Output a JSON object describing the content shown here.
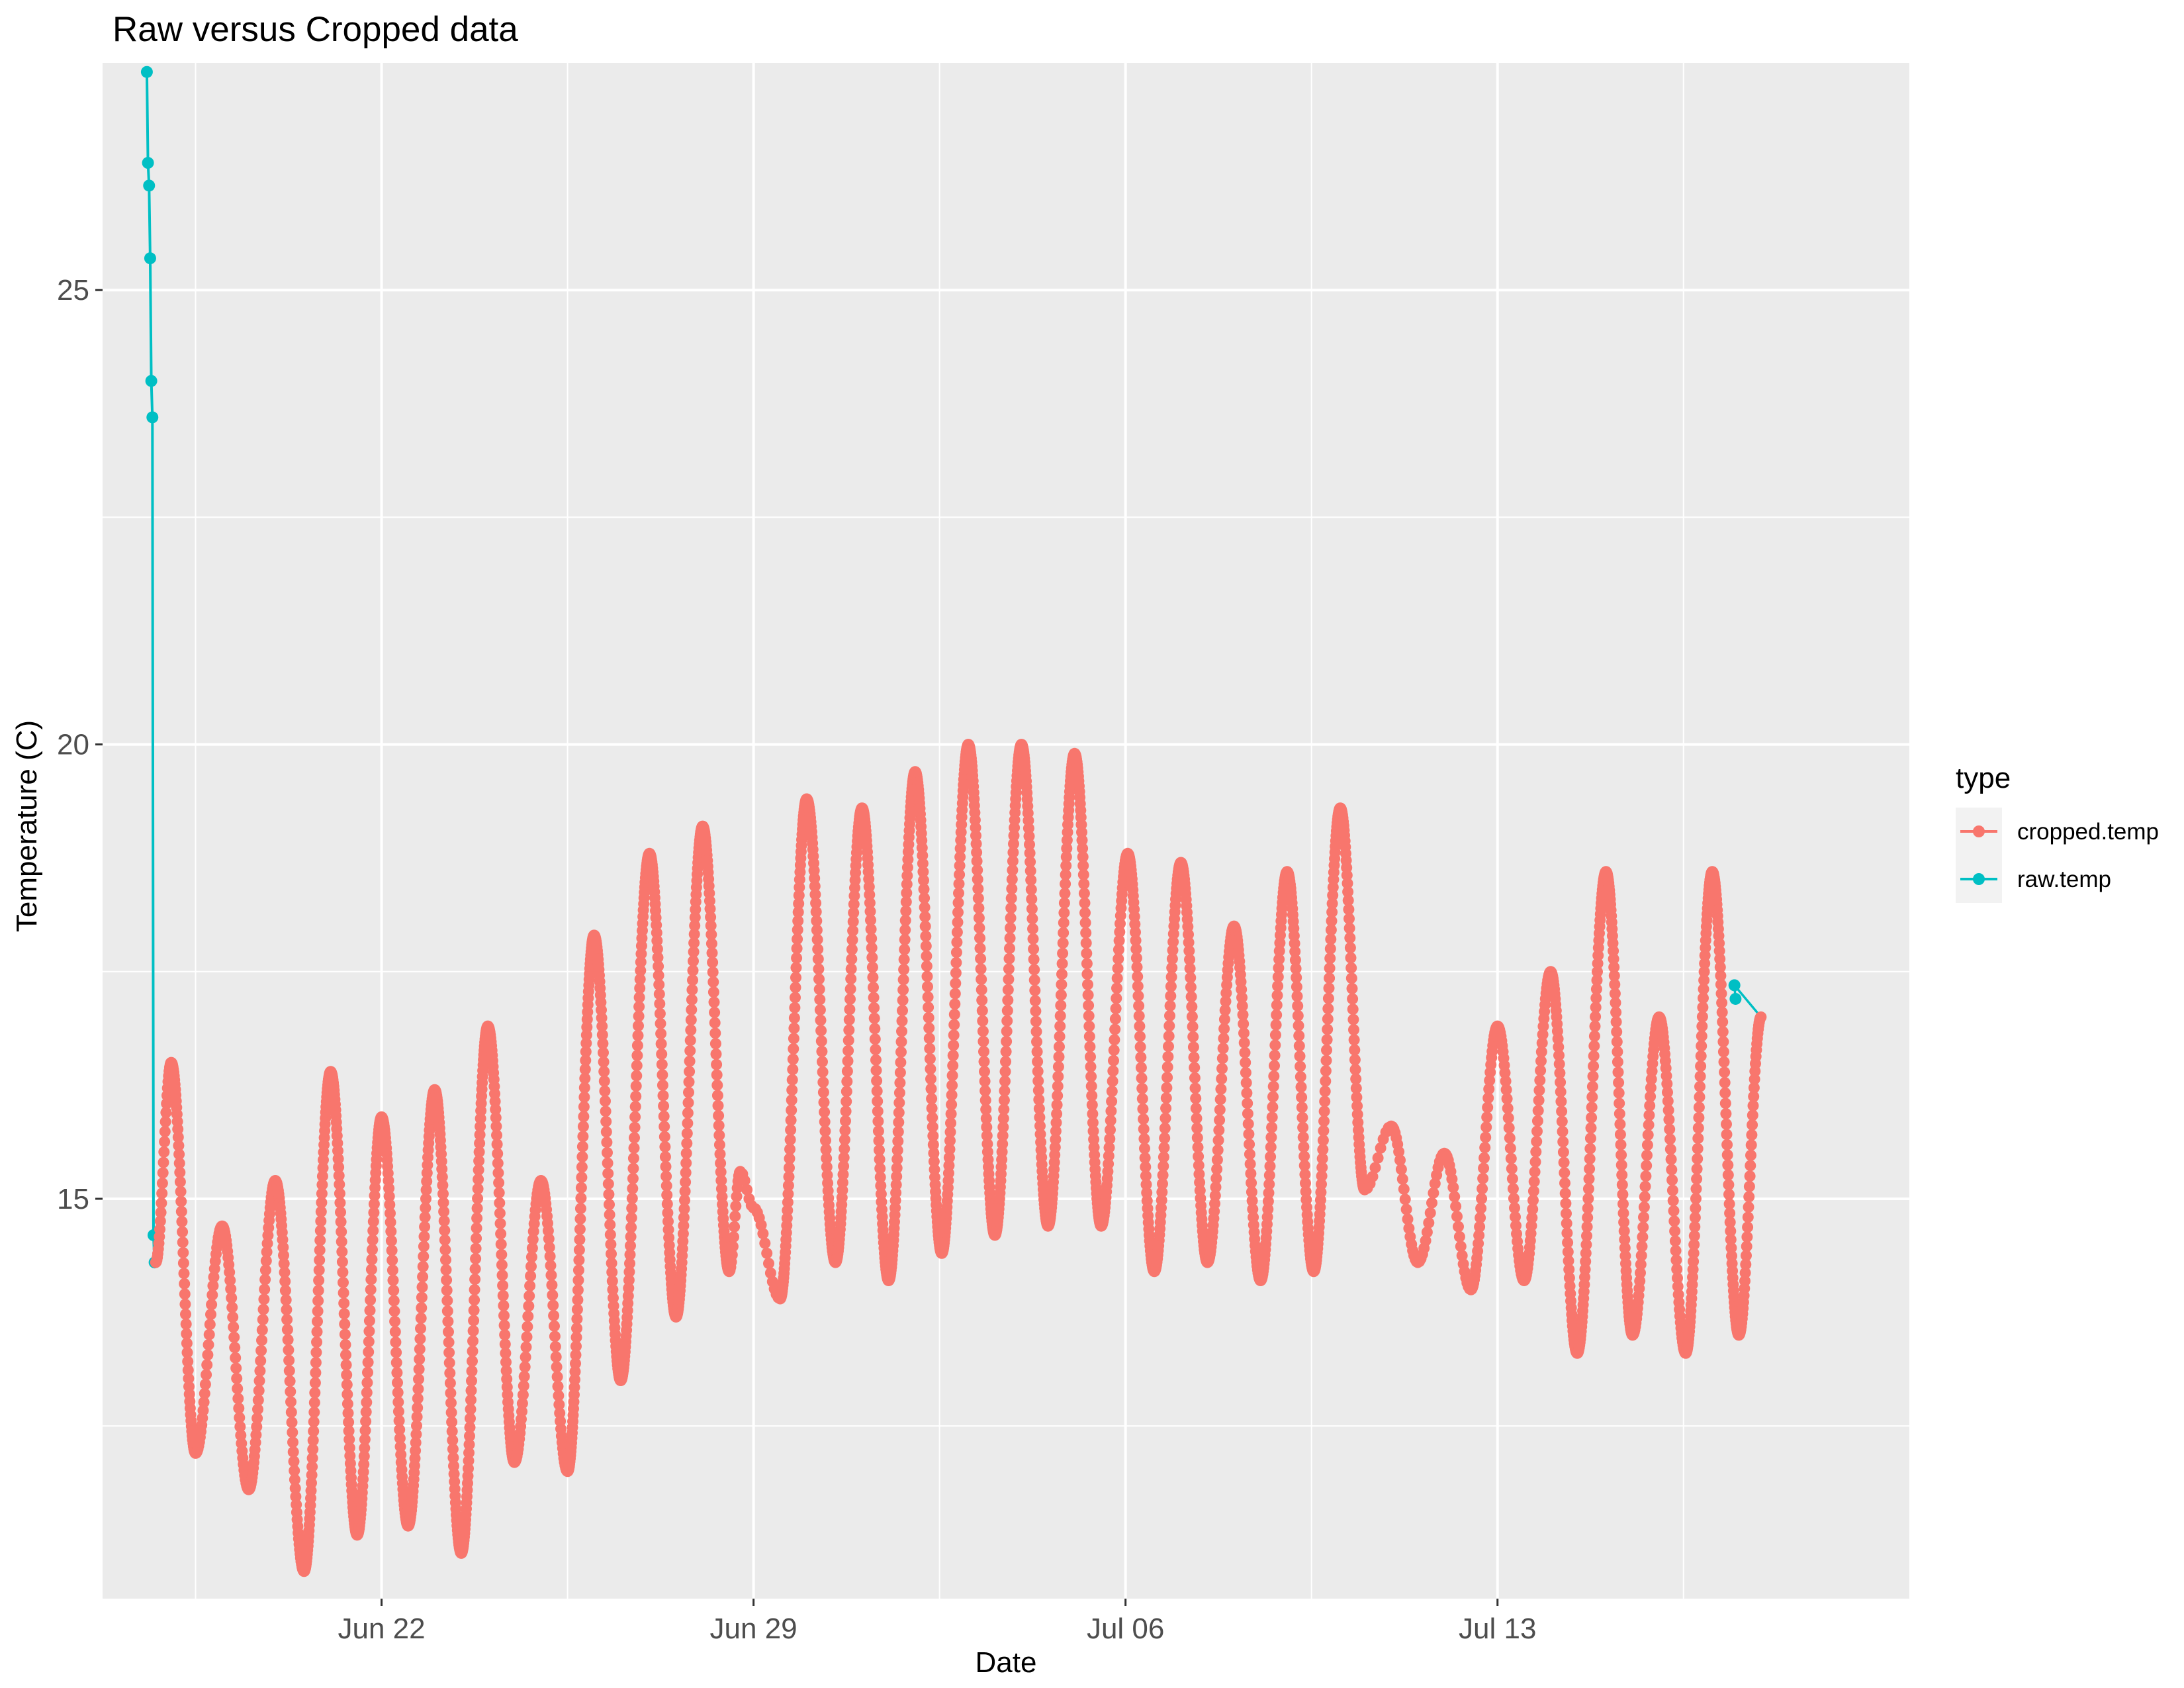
{
  "chart_data": {
    "type": "line",
    "title": "Raw versus Cropped data",
    "xlabel": "Date",
    "ylabel": "Temperature (C)",
    "x_range": [
      "2021-06-16T18:00",
      "2021-07-20T18:00"
    ],
    "x_ticks": [
      {
        "label": "Jun 22",
        "date": "2021-06-22"
      },
      {
        "label": "Jun 29",
        "date": "2021-06-29"
      },
      {
        "label": "Jul 06",
        "date": "2021-07-06"
      },
      {
        "label": "Jul 13",
        "date": "2021-07-13"
      }
    ],
    "x_minor_ticks": [
      "2021-06-18T12:00",
      "2021-06-25T12:00",
      "2021-07-02T12:00",
      "2021-07-09T12:00",
      "2021-07-16T12:00"
    ],
    "ylim": [
      10.6,
      27.5
    ],
    "y_ticks": [
      15,
      20,
      25
    ],
    "y_minor_ticks": [
      12.5,
      17.5,
      22.5
    ],
    "grid": true,
    "legend": {
      "title": "type",
      "position": "right"
    },
    "series": [
      {
        "name": "raw.temp",
        "color": "#00BFC4",
        "points": [
          [
            "2021-06-17T14:00",
            27.4
          ],
          [
            "2021-06-17T14:30",
            26.4
          ],
          [
            "2021-06-17T15:00",
            26.15
          ],
          [
            "2021-06-17T15:30",
            25.35
          ],
          [
            "2021-06-17T16:00",
            24.0
          ],
          [
            "2021-06-17T16:30",
            23.6
          ],
          [
            "2021-06-17T17:00",
            14.6
          ],
          [
            "2021-06-17T17:30",
            14.3
          ],
          [
            "2021-07-17T11:00",
            17.35
          ],
          [
            "2021-07-17T11:30",
            17.2
          ]
        ]
      },
      {
        "name": "cropped.temp",
        "color": "#F8766D",
        "points": [
          [
            "2021-06-17T18:00",
            14.3
          ],
          [
            "2021-06-18T01:00",
            16.5
          ],
          [
            "2021-06-18T12:00",
            12.2
          ],
          [
            "2021-06-19T00:00",
            14.7
          ],
          [
            "2021-06-19T12:00",
            11.8
          ],
          [
            "2021-06-20T00:00",
            15.2
          ],
          [
            "2021-06-20T13:00",
            10.9
          ],
          [
            "2021-06-21T01:00",
            16.4
          ],
          [
            "2021-06-21T13:00",
            11.3
          ],
          [
            "2021-06-22T00:00",
            15.9
          ],
          [
            "2021-06-22T12:00",
            11.4
          ],
          [
            "2021-06-23T00:00",
            16.2
          ],
          [
            "2021-06-23T12:00",
            11.1
          ],
          [
            "2021-06-24T00:00",
            16.9
          ],
          [
            "2021-06-24T12:00",
            12.1
          ],
          [
            "2021-06-25T00:00",
            15.2
          ],
          [
            "2021-06-25T12:00",
            12.0
          ],
          [
            "2021-06-26T00:00",
            17.9
          ],
          [
            "2021-06-26T12:00",
            13.0
          ],
          [
            "2021-06-27T01:00",
            18.8
          ],
          [
            "2021-06-27T13:00",
            13.7
          ],
          [
            "2021-06-28T01:00",
            19.1
          ],
          [
            "2021-06-28T13:00",
            14.2
          ],
          [
            "2021-06-28T18:00",
            15.3
          ],
          [
            "2021-06-29T00:00",
            14.9
          ],
          [
            "2021-06-29T12:00",
            13.9
          ],
          [
            "2021-06-30T00:00",
            19.4
          ],
          [
            "2021-06-30T13:00",
            14.3
          ],
          [
            "2021-07-01T01:00",
            19.3
          ],
          [
            "2021-07-01T13:00",
            14.1
          ],
          [
            "2021-07-02T01:00",
            19.7
          ],
          [
            "2021-07-02T13:00",
            14.4
          ],
          [
            "2021-07-03T01:00",
            20.0
          ],
          [
            "2021-07-03T13:00",
            14.6
          ],
          [
            "2021-07-04T01:00",
            20.0
          ],
          [
            "2021-07-04T13:00",
            14.7
          ],
          [
            "2021-07-05T01:00",
            19.9
          ],
          [
            "2021-07-05T13:00",
            14.7
          ],
          [
            "2021-07-06T01:00",
            18.8
          ],
          [
            "2021-07-06T13:00",
            14.2
          ],
          [
            "2021-07-07T01:00",
            18.7
          ],
          [
            "2021-07-07T13:00",
            14.3
          ],
          [
            "2021-07-08T01:00",
            18.0
          ],
          [
            "2021-07-08T13:00",
            14.1
          ],
          [
            "2021-07-09T01:00",
            18.6
          ],
          [
            "2021-07-09T13:00",
            14.2
          ],
          [
            "2021-07-10T01:00",
            19.3
          ],
          [
            "2021-07-10T12:00",
            15.1
          ],
          [
            "2021-07-11T00:00",
            15.8
          ],
          [
            "2021-07-11T12:00",
            14.3
          ],
          [
            "2021-07-12T00:00",
            15.5
          ],
          [
            "2021-07-12T12:00",
            14.0
          ],
          [
            "2021-07-13T00:00",
            16.9
          ],
          [
            "2021-07-13T12:00",
            14.1
          ],
          [
            "2021-07-14T00:00",
            17.5
          ],
          [
            "2021-07-14T12:00",
            13.3
          ],
          [
            "2021-07-15T01:00",
            18.6
          ],
          [
            "2021-07-15T13:00",
            13.5
          ],
          [
            "2021-07-16T01:00",
            17.0
          ],
          [
            "2021-07-16T13:00",
            13.3
          ],
          [
            "2021-07-17T01:00",
            18.6
          ],
          [
            "2021-07-17T13:00",
            13.5
          ],
          [
            "2021-07-17T23:00",
            17.0
          ]
        ]
      }
    ]
  }
}
